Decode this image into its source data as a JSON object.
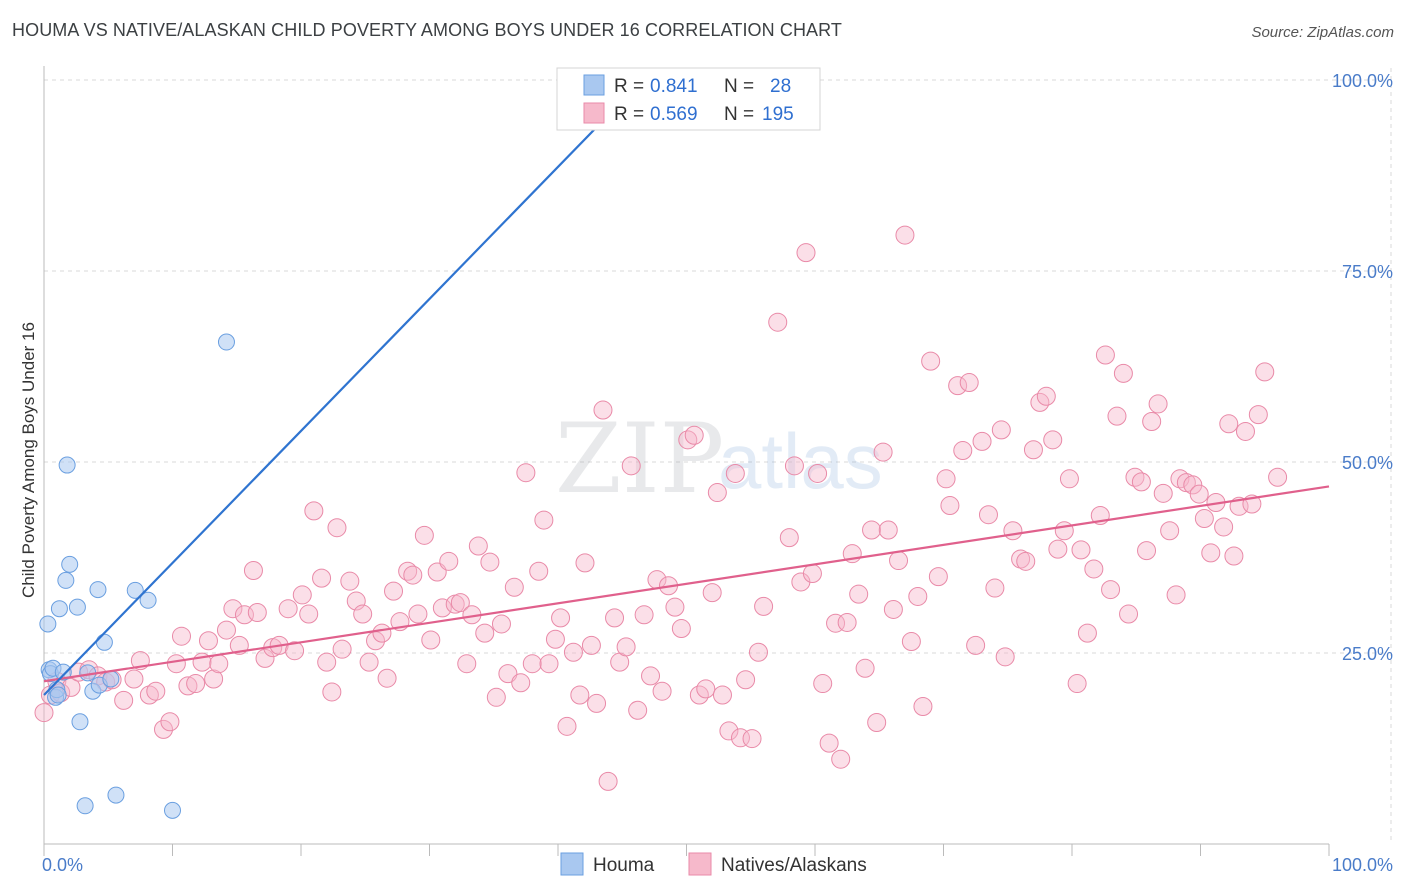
{
  "title": "HOUMA VS NATIVE/ALASKAN CHILD POVERTY AMONG BOYS UNDER 16 CORRELATION CHART",
  "source": "Source: ZipAtlas.com",
  "watermark": {
    "zip": "ZIP",
    "atlas": "atlas"
  },
  "colors": {
    "houma_fill": "#a9c8f0",
    "houma_stroke": "#6a9fe0",
    "houma_line": "#2f74d0",
    "native_fill": "#f6b9cb",
    "native_stroke": "#e98aa8",
    "native_line": "#e0608c",
    "tick_text": "#4a7cc9",
    "grid": "#d8d8d8"
  },
  "legend": {
    "r_label": "R =",
    "n_label": "N =",
    "houma": {
      "r": "0.841",
      "n": "28"
    },
    "native": {
      "r": "0.569",
      "n": "195"
    }
  },
  "bottom_legend": {
    "houma": "Houma",
    "native": "Natives/Alaskans"
  },
  "chart_data": {
    "type": "scatter",
    "title": "HOUMA VS NATIVE/ALASKAN CHILD POVERTY AMONG BOYS UNDER 16 CORRELATION CHART",
    "xlabel": "",
    "ylabel": "Child Poverty Among Boys Under 16",
    "xlim": [
      0,
      100
    ],
    "ylim": [
      0,
      100
    ],
    "x_tick_labels": [
      "0.0%",
      "100.0%"
    ],
    "y_ticks": [
      25,
      50,
      75,
      100
    ],
    "y_tick_labels": [
      "25.0%",
      "50.0%",
      "75.0%",
      "100.0%"
    ],
    "grid": "horizontal dashed",
    "legend_position": "top-center",
    "series": [
      {
        "name": "Houma",
        "points": [
          [
            0.3,
            28.8
          ],
          [
            0.4,
            22.8
          ],
          [
            0.5,
            22.3
          ],
          [
            0.7,
            23.0
          ],
          [
            0.9,
            19.2
          ],
          [
            1.0,
            20.2
          ],
          [
            1.1,
            19.5
          ],
          [
            1.2,
            30.8
          ],
          [
            1.5,
            22.5
          ],
          [
            1.7,
            34.5
          ],
          [
            1.8,
            49.6
          ],
          [
            2.0,
            36.6
          ],
          [
            2.6,
            31.0
          ],
          [
            2.8,
            16.0
          ],
          [
            3.2,
            5.0
          ],
          [
            3.4,
            22.4
          ],
          [
            3.8,
            20.0
          ],
          [
            4.2,
            33.3
          ],
          [
            4.3,
            20.8
          ],
          [
            4.7,
            26.4
          ],
          [
            5.2,
            21.6
          ],
          [
            5.6,
            6.4
          ],
          [
            7.1,
            33.2
          ],
          [
            8.1,
            31.9
          ],
          [
            10.0,
            4.4
          ],
          [
            14.2,
            65.7
          ],
          [
            41.2,
            97.6
          ],
          [
            45.8,
            97.2
          ]
        ],
        "trend": [
          [
            0.0,
            19.5
          ],
          [
            46.0,
            99.0
          ]
        ]
      },
      {
        "name": "Natives/Alaskans",
        "points": [
          [
            0.0,
            17.2
          ],
          [
            0.5,
            19.5
          ],
          [
            1.0,
            21.3
          ],
          [
            1.3,
            19.8
          ],
          [
            2.1,
            20.5
          ],
          [
            2.7,
            22.5
          ],
          [
            3.5,
            22.8
          ],
          [
            4.2,
            22.0
          ],
          [
            4.8,
            21.2
          ],
          [
            5.3,
            21.5
          ],
          [
            6.2,
            18.8
          ],
          [
            7.0,
            21.6
          ],
          [
            7.5,
            24.0
          ],
          [
            8.2,
            19.5
          ],
          [
            8.7,
            20.0
          ],
          [
            9.3,
            15.0
          ],
          [
            9.8,
            16.0
          ],
          [
            10.3,
            23.6
          ],
          [
            10.7,
            27.2
          ],
          [
            11.2,
            20.7
          ],
          [
            11.8,
            21.0
          ],
          [
            12.3,
            23.8
          ],
          [
            12.8,
            26.6
          ],
          [
            13.2,
            21.6
          ],
          [
            13.6,
            23.6
          ],
          [
            14.2,
            28.0
          ],
          [
            14.7,
            30.8
          ],
          [
            15.2,
            26.0
          ],
          [
            15.6,
            30.0
          ],
          [
            16.3,
            35.8
          ],
          [
            16.6,
            30.3
          ],
          [
            17.2,
            24.3
          ],
          [
            17.8,
            25.7
          ],
          [
            18.3,
            26.0
          ],
          [
            19.0,
            30.8
          ],
          [
            19.5,
            25.3
          ],
          [
            20.1,
            32.6
          ],
          [
            20.6,
            30.1
          ],
          [
            21.0,
            43.6
          ],
          [
            21.6,
            34.8
          ],
          [
            22.0,
            23.8
          ],
          [
            22.4,
            19.9
          ],
          [
            22.8,
            41.4
          ],
          [
            23.2,
            25.5
          ],
          [
            23.8,
            34.4
          ],
          [
            24.3,
            31.8
          ],
          [
            24.8,
            30.1
          ],
          [
            25.3,
            23.8
          ],
          [
            25.8,
            26.6
          ],
          [
            26.3,
            27.6
          ],
          [
            26.7,
            21.7
          ],
          [
            27.2,
            33.1
          ],
          [
            27.7,
            29.1
          ],
          [
            28.3,
            35.7
          ],
          [
            28.7,
            35.2
          ],
          [
            29.1,
            30.1
          ],
          [
            29.6,
            40.4
          ],
          [
            30.1,
            26.7
          ],
          [
            30.6,
            35.6
          ],
          [
            31.0,
            30.9
          ],
          [
            31.5,
            37.0
          ],
          [
            32.0,
            31.4
          ],
          [
            32.4,
            31.6
          ],
          [
            32.9,
            23.6
          ],
          [
            33.3,
            30.0
          ],
          [
            33.8,
            39.0
          ],
          [
            34.3,
            27.6
          ],
          [
            34.7,
            36.9
          ],
          [
            35.2,
            19.2
          ],
          [
            35.6,
            28.8
          ],
          [
            36.1,
            22.3
          ],
          [
            36.6,
            33.6
          ],
          [
            37.1,
            21.1
          ],
          [
            37.5,
            48.6
          ],
          [
            38.0,
            23.6
          ],
          [
            38.5,
            35.7
          ],
          [
            38.9,
            42.4
          ],
          [
            39.3,
            23.6
          ],
          [
            39.8,
            26.8
          ],
          [
            40.2,
            29.6
          ],
          [
            40.7,
            15.4
          ],
          [
            41.2,
            25.1
          ],
          [
            41.7,
            19.5
          ],
          [
            42.1,
            36.8
          ],
          [
            42.6,
            26.0
          ],
          [
            43.0,
            18.4
          ],
          [
            43.5,
            56.8
          ],
          [
            43.9,
            8.2
          ],
          [
            44.4,
            29.6
          ],
          [
            44.8,
            23.8
          ],
          [
            45.3,
            25.8
          ],
          [
            45.7,
            49.5
          ],
          [
            46.2,
            17.5
          ],
          [
            46.7,
            30.0
          ],
          [
            47.2,
            22.0
          ],
          [
            47.7,
            34.6
          ],
          [
            48.1,
            20.0
          ],
          [
            48.6,
            33.8
          ],
          [
            49.1,
            31.0
          ],
          [
            49.6,
            28.2
          ],
          [
            50.1,
            52.9
          ],
          [
            50.6,
            53.5
          ],
          [
            51.0,
            19.5
          ],
          [
            51.5,
            20.3
          ],
          [
            52.0,
            32.9
          ],
          [
            52.4,
            46.0
          ],
          [
            52.8,
            19.5
          ],
          [
            53.3,
            14.8
          ],
          [
            53.8,
            48.5
          ],
          [
            54.2,
            13.9
          ],
          [
            54.6,
            21.5
          ],
          [
            55.1,
            13.8
          ],
          [
            55.6,
            25.1
          ],
          [
            56.0,
            31.1
          ],
          [
            57.1,
            68.3
          ],
          [
            58.0,
            40.1
          ],
          [
            58.4,
            49.5
          ],
          [
            58.9,
            34.3
          ],
          [
            59.3,
            77.4
          ],
          [
            59.8,
            35.4
          ],
          [
            60.2,
            48.5
          ],
          [
            60.6,
            21.0
          ],
          [
            61.1,
            13.2
          ],
          [
            61.6,
            28.9
          ],
          [
            62.0,
            11.1
          ],
          [
            62.5,
            29.0
          ],
          [
            62.9,
            38.0
          ],
          [
            63.4,
            32.7
          ],
          [
            63.9,
            23.0
          ],
          [
            64.4,
            41.1
          ],
          [
            64.8,
            15.9
          ],
          [
            65.3,
            51.3
          ],
          [
            65.7,
            41.1
          ],
          [
            66.1,
            30.7
          ],
          [
            66.5,
            37.1
          ],
          [
            67.0,
            79.7
          ],
          [
            67.5,
            26.5
          ],
          [
            68.0,
            32.4
          ],
          [
            68.4,
            18.0
          ],
          [
            69.0,
            63.2
          ],
          [
            69.6,
            35.0
          ],
          [
            70.2,
            47.8
          ],
          [
            70.5,
            44.3
          ],
          [
            71.1,
            60.0
          ],
          [
            71.5,
            51.5
          ],
          [
            72.0,
            60.4
          ],
          [
            72.5,
            26.0
          ],
          [
            73.0,
            52.7
          ],
          [
            73.5,
            43.1
          ],
          [
            74.0,
            33.5
          ],
          [
            74.5,
            54.2
          ],
          [
            74.8,
            24.5
          ],
          [
            75.4,
            41.0
          ],
          [
            76.0,
            37.3
          ],
          [
            76.4,
            37.0
          ],
          [
            77.0,
            51.6
          ],
          [
            77.5,
            57.8
          ],
          [
            78.0,
            58.6
          ],
          [
            78.5,
            52.9
          ],
          [
            78.9,
            38.6
          ],
          [
            79.4,
            41.0
          ],
          [
            79.8,
            47.8
          ],
          [
            80.4,
            21.0
          ],
          [
            80.7,
            38.5
          ],
          [
            81.2,
            27.6
          ],
          [
            81.7,
            36.0
          ],
          [
            82.2,
            43.0
          ],
          [
            82.6,
            64.0
          ],
          [
            83.0,
            33.3
          ],
          [
            83.5,
            56.0
          ],
          [
            84.0,
            61.6
          ],
          [
            84.4,
            30.1
          ],
          [
            84.9,
            48.0
          ],
          [
            85.4,
            47.4
          ],
          [
            85.8,
            38.4
          ],
          [
            86.2,
            55.3
          ],
          [
            86.7,
            57.6
          ],
          [
            87.1,
            45.9
          ],
          [
            87.6,
            41.0
          ],
          [
            88.1,
            32.6
          ],
          [
            88.4,
            47.8
          ],
          [
            88.9,
            47.3
          ],
          [
            89.4,
            47.0
          ],
          [
            89.9,
            45.8
          ],
          [
            90.3,
            42.6
          ],
          [
            90.8,
            38.1
          ],
          [
            91.2,
            44.7
          ],
          [
            91.8,
            41.5
          ],
          [
            92.2,
            55.0
          ],
          [
            92.6,
            37.7
          ],
          [
            93.0,
            44.2
          ],
          [
            93.5,
            54.0
          ],
          [
            94.0,
            44.5
          ],
          [
            94.5,
            56.2
          ],
          [
            95.0,
            61.8
          ],
          [
            96.0,
            48.0
          ]
        ],
        "trend": [
          [
            0.0,
            21.3
          ],
          [
            100.0,
            46.8
          ]
        ]
      }
    ]
  }
}
